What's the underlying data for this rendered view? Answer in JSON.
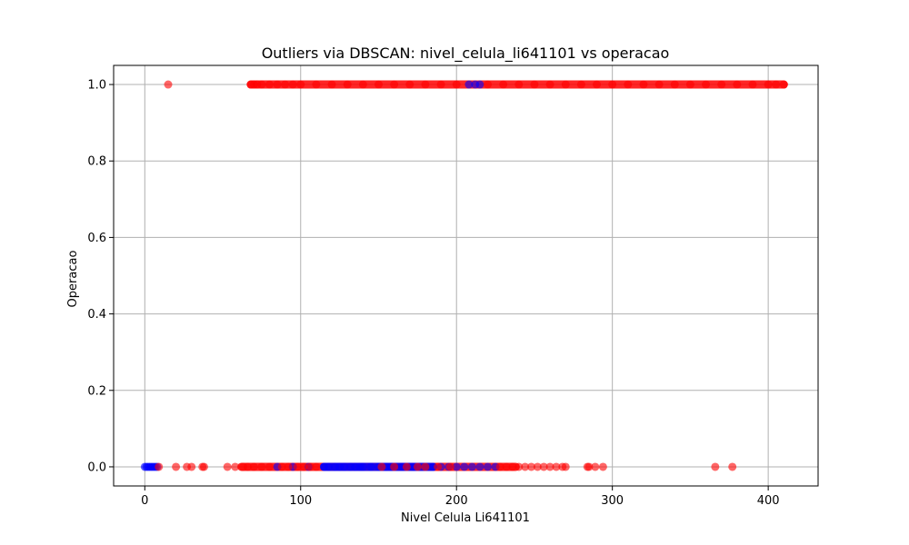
{
  "chart_data": {
    "type": "scatter",
    "title": "Outliers via DBSCAN: nivel_celula_li641101 vs operacao",
    "xlabel": "Nivel Celula Li641101",
    "ylabel": "Operacao",
    "xlim": [
      -20,
      432
    ],
    "ylim": [
      -0.05,
      1.05
    ],
    "xticks": [
      0,
      100,
      200,
      300,
      400
    ],
    "yticks": [
      0.0,
      0.2,
      0.4,
      0.6,
      0.8,
      1.0
    ],
    "xtick_labels": [
      "0",
      "100",
      "200",
      "300",
      "400"
    ],
    "ytick_labels": [
      "0.0",
      "0.2",
      "0.4",
      "0.6",
      "0.8",
      "1.0"
    ],
    "grid": true,
    "series": [
      {
        "color": "#0000ff",
        "points": [
          [
            0,
            0
          ],
          [
            1,
            0
          ],
          [
            2,
            0
          ],
          [
            3,
            0
          ],
          [
            4,
            0
          ],
          [
            5,
            0
          ],
          [
            6,
            0
          ],
          [
            7,
            0
          ],
          [
            8,
            0
          ],
          [
            85,
            0
          ],
          [
            95,
            0
          ],
          [
            105,
            0
          ],
          [
            115,
            0
          ],
          [
            118,
            0
          ],
          [
            122,
            0
          ],
          [
            125,
            0
          ],
          [
            128,
            0
          ],
          [
            132,
            0
          ],
          [
            135,
            0
          ],
          [
            138,
            0
          ],
          [
            140,
            0
          ],
          [
            145,
            0
          ],
          [
            150,
            0
          ],
          [
            155,
            0
          ],
          [
            158,
            0
          ],
          [
            165,
            0
          ],
          [
            172,
            0
          ],
          [
            185,
            0
          ],
          [
            190,
            0
          ],
          [
            195,
            0
          ],
          [
            200,
            0
          ],
          [
            205,
            0
          ],
          [
            210,
            0
          ],
          [
            215,
            0
          ],
          [
            220,
            0
          ],
          [
            225,
            0
          ],
          [
            208,
            1
          ],
          [
            212,
            1
          ],
          [
            215,
            1
          ]
        ]
      },
      {
        "color": "#ff0000",
        "points": [
          [
            15,
            1
          ],
          [
            68,
            1
          ],
          [
            70,
            1
          ],
          [
            72,
            1
          ],
          [
            75,
            1
          ],
          [
            80,
            1
          ],
          [
            85,
            1
          ],
          [
            90,
            1
          ],
          [
            95,
            1
          ],
          [
            100,
            1
          ],
          [
            110,
            1
          ],
          [
            120,
            1
          ],
          [
            130,
            1
          ],
          [
            140,
            1
          ],
          [
            150,
            1
          ],
          [
            160,
            1
          ],
          [
            170,
            1
          ],
          [
            180,
            1
          ],
          [
            190,
            1
          ],
          [
            200,
            1
          ],
          [
            220,
            1
          ],
          [
            230,
            1
          ],
          [
            240,
            1
          ],
          [
            250,
            1
          ],
          [
            260,
            1
          ],
          [
            270,
            1
          ],
          [
            280,
            1
          ],
          [
            290,
            1
          ],
          [
            300,
            1
          ],
          [
            310,
            1
          ],
          [
            320,
            1
          ],
          [
            330,
            1
          ],
          [
            340,
            1
          ],
          [
            350,
            1
          ],
          [
            360,
            1
          ],
          [
            370,
            1
          ],
          [
            380,
            1
          ],
          [
            390,
            1
          ],
          [
            400,
            1
          ],
          [
            405,
            1
          ],
          [
            410,
            1
          ],
          [
            9,
            0
          ],
          [
            20,
            0
          ],
          [
            27,
            0
          ],
          [
            30,
            0
          ],
          [
            37,
            0
          ],
          [
            38,
            0
          ],
          [
            53,
            0
          ],
          [
            58,
            0
          ],
          [
            63,
            0
          ],
          [
            66,
            0
          ],
          [
            70,
            0
          ],
          [
            75,
            0
          ],
          [
            80,
            0
          ],
          [
            88,
            0
          ],
          [
            92,
            0
          ],
          [
            98,
            0
          ],
          [
            102,
            0
          ],
          [
            106,
            0
          ],
          [
            110,
            0
          ],
          [
            152,
            0
          ],
          [
            160,
            0
          ],
          [
            168,
            0
          ],
          [
            175,
            0
          ],
          [
            180,
            0
          ],
          [
            188,
            0
          ],
          [
            196,
            0
          ],
          [
            228,
            0
          ],
          [
            232,
            0
          ],
          [
            236,
            0
          ],
          [
            240,
            0
          ],
          [
            244,
            0
          ],
          [
            248,
            0
          ],
          [
            252,
            0
          ],
          [
            256,
            0
          ],
          [
            260,
            0
          ],
          [
            264,
            0
          ],
          [
            268,
            0
          ],
          [
            270,
            0
          ],
          [
            284,
            0
          ],
          [
            285,
            0
          ],
          [
            289,
            0
          ],
          [
            294,
            0
          ],
          [
            366,
            0
          ],
          [
            377,
            0
          ]
        ]
      }
    ],
    "dense_bands": [
      {
        "color": "#ff0000",
        "y": 1,
        "x_from": 68,
        "x_to": 410
      },
      {
        "color": "#ff0000",
        "y": 0,
        "x_from": 62,
        "x_to": 238
      },
      {
        "color": "#0000ff",
        "y": 0,
        "x_from": 115,
        "x_to": 185
      }
    ]
  }
}
